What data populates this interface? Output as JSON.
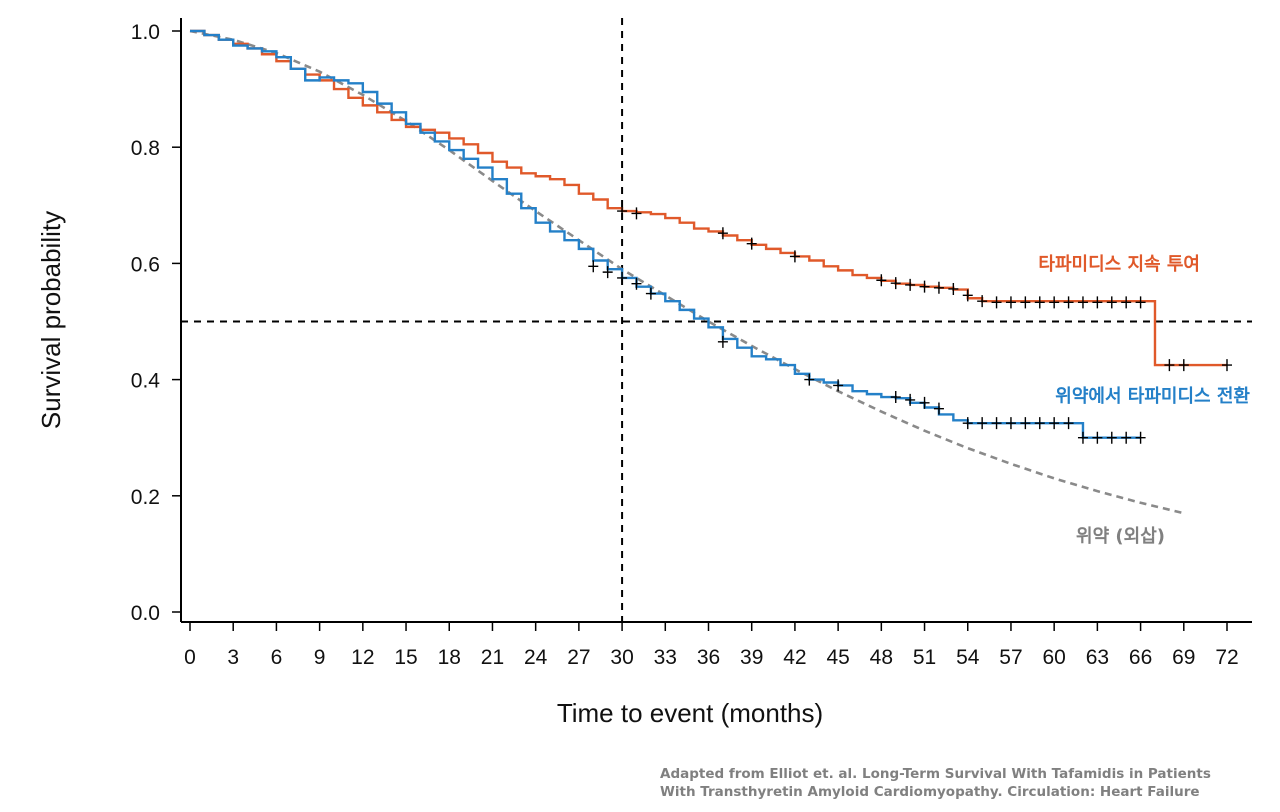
{
  "chart_data": {
    "type": "line",
    "subtype": "kaplan-meier",
    "xlabel": "Time to event (months)",
    "ylabel": "Survival probability",
    "xlim": [
      0,
      72
    ],
    "ylim": [
      0,
      1
    ],
    "xticks": [
      "0",
      "3",
      "6",
      "9",
      "12",
      "15",
      "18",
      "21",
      "24",
      "27",
      "30",
      "33",
      "36",
      "39",
      "42",
      "45",
      "48",
      "51",
      "54",
      "57",
      "60",
      "63",
      "66",
      "69",
      "72"
    ],
    "yticks": [
      "0.0",
      "0.2",
      "0.4",
      "0.6",
      "0.8",
      "1.0"
    ],
    "grid": false,
    "reference_lines": {
      "x": 30,
      "y": 0.5,
      "style": "dashed",
      "color": "#000000"
    },
    "series": [
      {
        "name": "타파미디스 지속 투여",
        "color": "#e0592a",
        "style": "step",
        "points": [
          [
            0,
            1.0
          ],
          [
            1,
            0.993
          ],
          [
            2,
            0.985
          ],
          [
            3,
            0.978
          ],
          [
            4,
            0.97
          ],
          [
            5,
            0.96
          ],
          [
            6,
            0.948
          ],
          [
            7,
            0.935
          ],
          [
            8,
            0.925
          ],
          [
            9,
            0.915
          ],
          [
            10,
            0.9
          ],
          [
            11,
            0.885
          ],
          [
            12,
            0.872
          ],
          [
            13,
            0.86
          ],
          [
            14,
            0.847
          ],
          [
            15,
            0.835
          ],
          [
            16,
            0.83
          ],
          [
            17,
            0.825
          ],
          [
            18,
            0.815
          ],
          [
            19,
            0.805
          ],
          [
            20,
            0.79
          ],
          [
            21,
            0.775
          ],
          [
            22,
            0.765
          ],
          [
            23,
            0.755
          ],
          [
            24,
            0.75
          ],
          [
            25,
            0.745
          ],
          [
            26,
            0.735
          ],
          [
            27,
            0.72
          ],
          [
            28,
            0.71
          ],
          [
            29,
            0.695
          ],
          [
            30,
            0.69
          ],
          [
            31,
            0.688
          ],
          [
            32,
            0.685
          ],
          [
            33,
            0.678
          ],
          [
            34,
            0.67
          ],
          [
            35,
            0.66
          ],
          [
            36,
            0.655
          ],
          [
            37,
            0.648
          ],
          [
            38,
            0.64
          ],
          [
            39,
            0.632
          ],
          [
            40,
            0.625
          ],
          [
            41,
            0.618
          ],
          [
            42,
            0.612
          ],
          [
            43,
            0.605
          ],
          [
            44,
            0.595
          ],
          [
            45,
            0.588
          ],
          [
            46,
            0.58
          ],
          [
            47,
            0.575
          ],
          [
            48,
            0.57
          ],
          [
            49,
            0.565
          ],
          [
            50,
            0.563
          ],
          [
            51,
            0.56
          ],
          [
            52,
            0.558
          ],
          [
            53,
            0.555
          ],
          [
            54,
            0.54
          ],
          [
            55,
            0.535
          ],
          [
            67,
            0.425
          ],
          [
            72,
            0.425
          ]
        ],
        "censored": [
          [
            30,
            0.69
          ],
          [
            31,
            0.686
          ],
          [
            37,
            0.652
          ],
          [
            39,
            0.634
          ],
          [
            42,
            0.612
          ],
          [
            48,
            0.571
          ],
          [
            49,
            0.566
          ],
          [
            50,
            0.563
          ],
          [
            51,
            0.56
          ],
          [
            52,
            0.558
          ],
          [
            53,
            0.556
          ],
          [
            54,
            0.545
          ],
          [
            55,
            0.535
          ],
          [
            56,
            0.533
          ],
          [
            57,
            0.533
          ],
          [
            58,
            0.533
          ],
          [
            59,
            0.533
          ],
          [
            60,
            0.533
          ],
          [
            61,
            0.533
          ],
          [
            62,
            0.533
          ],
          [
            63,
            0.533
          ],
          [
            64,
            0.533
          ],
          [
            65,
            0.533
          ],
          [
            66,
            0.533
          ],
          [
            68,
            0.425
          ],
          [
            69,
            0.425
          ],
          [
            72,
            0.425
          ]
        ]
      },
      {
        "name": "위약에서 타파미디스 전환",
        "color": "#2480c8",
        "style": "step",
        "points": [
          [
            0,
            1.0
          ],
          [
            1,
            0.993
          ],
          [
            2,
            0.985
          ],
          [
            3,
            0.975
          ],
          [
            4,
            0.97
          ],
          [
            5,
            0.965
          ],
          [
            6,
            0.955
          ],
          [
            7,
            0.935
          ],
          [
            8,
            0.915
          ],
          [
            9,
            0.92
          ],
          [
            10,
            0.915
          ],
          [
            11,
            0.91
          ],
          [
            12,
            0.895
          ],
          [
            13,
            0.875
          ],
          [
            14,
            0.86
          ],
          [
            15,
            0.84
          ],
          [
            16,
            0.825
          ],
          [
            17,
            0.81
          ],
          [
            18,
            0.795
          ],
          [
            19,
            0.78
          ],
          [
            20,
            0.765
          ],
          [
            21,
            0.745
          ],
          [
            22,
            0.72
          ],
          [
            23,
            0.695
          ],
          [
            24,
            0.67
          ],
          [
            25,
            0.655
          ],
          [
            26,
            0.64
          ],
          [
            27,
            0.625
          ],
          [
            28,
            0.605
          ],
          [
            29,
            0.59
          ],
          [
            30,
            0.575
          ],
          [
            31,
            0.56
          ],
          [
            32,
            0.548
          ],
          [
            33,
            0.535
          ],
          [
            34,
            0.52
          ],
          [
            35,
            0.505
          ],
          [
            36,
            0.49
          ],
          [
            37,
            0.47
          ],
          [
            38,
            0.455
          ],
          [
            39,
            0.44
          ],
          [
            40,
            0.435
          ],
          [
            41,
            0.425
          ],
          [
            42,
            0.41
          ],
          [
            43,
            0.4
          ],
          [
            44,
            0.395
          ],
          [
            45,
            0.39
          ],
          [
            46,
            0.38
          ],
          [
            47,
            0.375
          ],
          [
            48,
            0.37
          ],
          [
            49,
            0.368
          ],
          [
            50,
            0.36
          ],
          [
            51,
            0.352
          ],
          [
            52,
            0.34
          ],
          [
            53,
            0.33
          ],
          [
            54,
            0.325
          ],
          [
            62,
            0.3
          ],
          [
            66,
            0.3
          ]
        ],
        "censored": [
          [
            28,
            0.595
          ],
          [
            29,
            0.585
          ],
          [
            30,
            0.575
          ],
          [
            31,
            0.565
          ],
          [
            32,
            0.548
          ],
          [
            37,
            0.465
          ],
          [
            43,
            0.4
          ],
          [
            45,
            0.39
          ],
          [
            49,
            0.37
          ],
          [
            50,
            0.365
          ],
          [
            51,
            0.36
          ],
          [
            52,
            0.35
          ],
          [
            54,
            0.325
          ],
          [
            55,
            0.325
          ],
          [
            56,
            0.325
          ],
          [
            57,
            0.325
          ],
          [
            58,
            0.325
          ],
          [
            59,
            0.325
          ],
          [
            60,
            0.325
          ],
          [
            61,
            0.325
          ],
          [
            62,
            0.3
          ],
          [
            63,
            0.3
          ],
          [
            64,
            0.3
          ],
          [
            65,
            0.3
          ],
          [
            66,
            0.3
          ]
        ]
      },
      {
        "name": "위약 (외삽)",
        "color": "#8a8a8a",
        "style": "dashed",
        "points": [
          [
            0,
            1.0
          ],
          [
            3,
            0.985
          ],
          [
            6,
            0.962
          ],
          [
            9,
            0.93
          ],
          [
            12,
            0.89
          ],
          [
            15,
            0.845
          ],
          [
            18,
            0.795
          ],
          [
            21,
            0.742
          ],
          [
            24,
            0.69
          ],
          [
            27,
            0.64
          ],
          [
            30,
            0.59
          ],
          [
            33,
            0.545
          ],
          [
            36,
            0.5
          ],
          [
            39,
            0.458
          ],
          [
            42,
            0.418
          ],
          [
            45,
            0.38
          ],
          [
            48,
            0.345
          ],
          [
            51,
            0.312
          ],
          [
            54,
            0.282
          ],
          [
            57,
            0.255
          ],
          [
            60,
            0.23
          ],
          [
            63,
            0.208
          ],
          [
            66,
            0.188
          ],
          [
            69,
            0.17
          ]
        ]
      }
    ]
  },
  "credit": {
    "line1": "Adapted from Elliot et. al. Long-Term Survival With Tafamidis in Patients",
    "line2": "With Transthyretin Amyloid Cardiomyopathy. Circulation: Heart Failure"
  }
}
